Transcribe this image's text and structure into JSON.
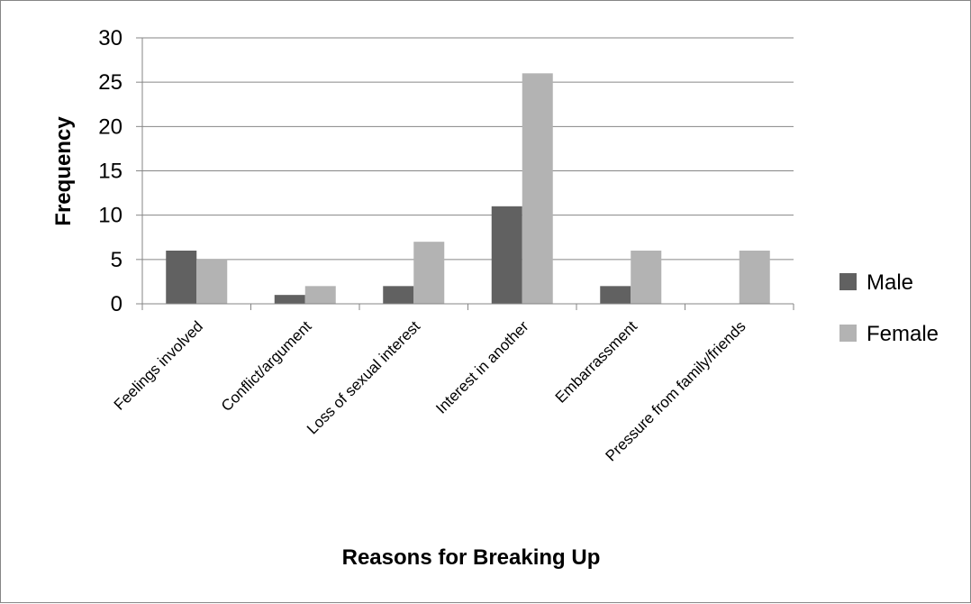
{
  "chart_data": {
    "type": "bar",
    "title": "",
    "xlabel": "Reasons for Breaking Up",
    "ylabel": "Frequency",
    "ylim": [
      0,
      30
    ],
    "ytick_step": 5,
    "yticks": [
      "0",
      "5",
      "10",
      "15",
      "20",
      "25",
      "30"
    ],
    "grid": true,
    "legend_position": "right",
    "categories": [
      "Feelings involved",
      "Conflict/argument",
      "Loss of sexual interest",
      "Interest in another",
      "Embarrassment",
      "Pressure from family/friends"
    ],
    "series": [
      {
        "name": "Male",
        "color": "#616161",
        "values": [
          6,
          1,
          2,
          11,
          2,
          0
        ]
      },
      {
        "name": "Female",
        "color": "#b3b3b3",
        "values": [
          5,
          2,
          7,
          26,
          6,
          6
        ]
      }
    ]
  }
}
